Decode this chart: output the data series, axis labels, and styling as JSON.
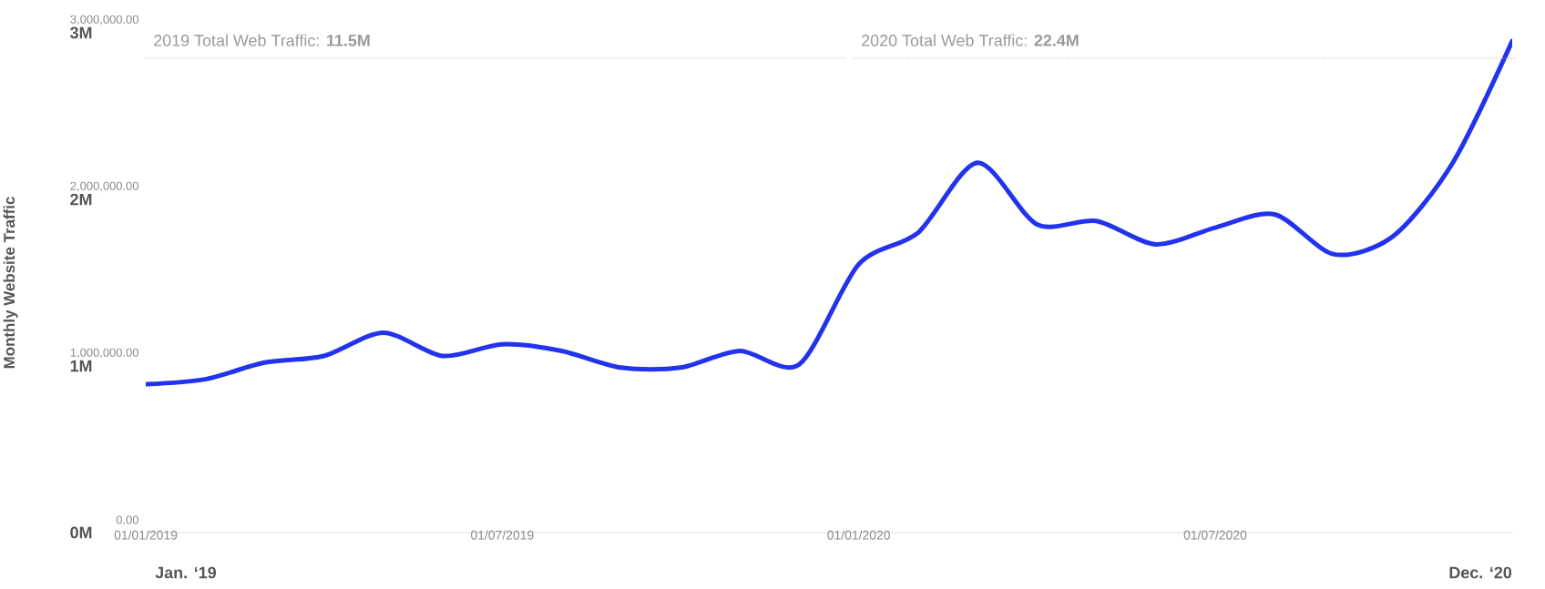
{
  "chart_data": {
    "type": "line",
    "ylabel": "Monthly Website Traffic",
    "x": [
      "2019-01",
      "2019-02",
      "2019-03",
      "2019-04",
      "2019-05",
      "2019-06",
      "2019-07",
      "2019-08",
      "2019-09",
      "2019-10",
      "2019-11",
      "2019-12",
      "2020-01",
      "2020-02",
      "2020-03",
      "2020-04",
      "2020-05",
      "2020-06",
      "2020-07",
      "2020-08",
      "2020-09",
      "2020-10",
      "2020-11",
      "2020-12"
    ],
    "series": [
      {
        "color": "#2233ee",
        "values": [
          890000,
          920000,
          1020000,
          1060000,
          1200000,
          1060000,
          1130000,
          1090000,
          990000,
          990000,
          1090000,
          1010000,
          1610000,
          1800000,
          2220000,
          1850000,
          1870000,
          1730000,
          1830000,
          1910000,
          1670000,
          1780000,
          2220000,
          2950000
        ]
      }
    ],
    "xlim": [
      "2019-01",
      "2020-12"
    ],
    "xticks": [
      {
        "value": "2019-01",
        "label": "01/01/2019"
      },
      {
        "value": "2019-07",
        "label": "01/07/2019"
      },
      {
        "value": "2020-01",
        "label": "01/01/2020"
      },
      {
        "value": "2020-07",
        "label": "01/07/2020"
      }
    ],
    "ylim": [
      0,
      3000000
    ],
    "yticks": [
      {
        "value": 0,
        "label": "0M"
      },
      {
        "value": 1000000,
        "label": "1M"
      },
      {
        "value": 2000000,
        "label": "2M"
      },
      {
        "value": 3000000,
        "label": "3M"
      }
    ],
    "y2lim": [
      0,
      3000000
    ],
    "y2ticks": [
      {
        "value": 0,
        "label": "0.00"
      },
      {
        "value": 1000000,
        "label": "1,000,000.00"
      },
      {
        "value": 2000000,
        "label": "2,000,000.00"
      },
      {
        "value": 3000000,
        "label": "3,000,000.00"
      }
    ],
    "annotations": [
      "2019 Total Web Traffic: **11.5M**",
      "2020 Total Web Traffic: **22.4M**",
      "Jan. ‘19",
      "Dec. ‘20"
    ]
  }
}
